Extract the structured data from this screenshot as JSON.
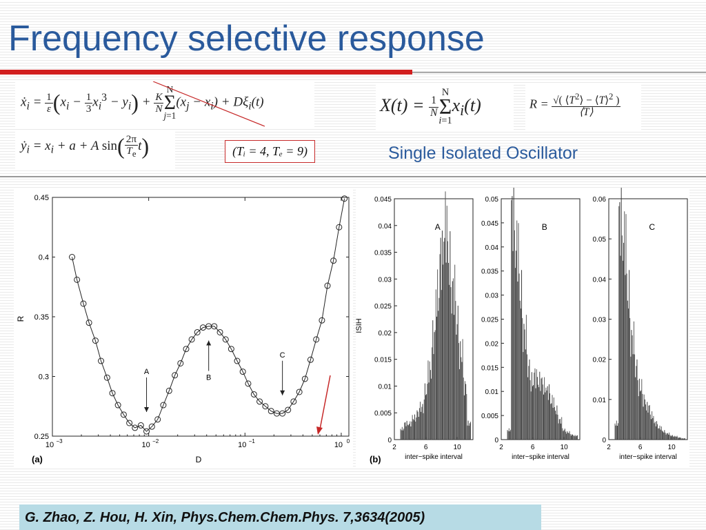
{
  "title": "Frequency selective response",
  "equations": {
    "x_dot": "ẋᵢ = 1/ε ( xᵢ − 1/3 xᵢ³ − yᵢ ) + K/N Σⱼ₌₁ᴺ (xⱼ − xᵢ) + Dξᵢ(t)",
    "y_dot": "ẏᵢ = xᵢ + a + A sin(2π/Tₑ t)",
    "X_def": "X(t) = 1/N Σᵢ₌₁ᴺ xᵢ(t)",
    "R_def": "R = √(⟨T²⟩ − ⟨T⟩²) / ⟨T⟩",
    "params": "(Tᵢ = 4, Tₑ = 9)"
  },
  "single_label": "Single Isolated Oscillator",
  "panel_a": {
    "label": "(a)",
    "xlabel": "D",
    "ylabel": "R",
    "x_ticks": [
      "10",
      "10",
      "10",
      "10"
    ],
    "x_tick_exps": [
      "−3",
      "−2",
      "−1",
      "0"
    ],
    "y_ticks": [
      "0.25",
      "0.3",
      "0.35",
      "0.4",
      "0.45"
    ],
    "annotations": [
      "A",
      "B",
      "C"
    ]
  },
  "panel_b": {
    "label": "(b)",
    "ylabel": "ISIH",
    "xlabel": "inter−spike interval",
    "hist_letters": [
      "A",
      "B",
      "C"
    ],
    "x_ticks": [
      "2",
      "6",
      "10"
    ],
    "hist_y_ticks": [
      [
        "0",
        "0.005",
        "0.01",
        "0.015",
        "0.02",
        "0.025",
        "0.03",
        "0.035",
        "0.04",
        "0.045"
      ],
      [
        "0",
        "0.005",
        "0.01",
        "0.015",
        "0.02",
        "0.025",
        "0.03",
        "0.035",
        "0.04",
        "0.045",
        "0.05"
      ],
      [
        "0",
        "0.01",
        "0.02",
        "0.03",
        "0.04",
        "0.05",
        "0.06"
      ]
    ]
  },
  "citation": "G. Zhao, Z. Hou, H. Xin, Phys.Chem.Chem.Phys. 7,3634(2005)",
  "colors": {
    "title": "#2a5a9c",
    "accent_bar": "#d21f1f",
    "citation_bg": "#b7dbe5",
    "arrow_red": "#c62828"
  },
  "chart_data": [
    {
      "type": "line",
      "xscale": "log",
      "xlabel": "D",
      "ylabel": "R",
      "xlim": [
        0.001,
        1.2
      ],
      "ylim": [
        0.25,
        0.45
      ],
      "series": [
        {
          "marker": "circle",
          "x": [
            0.0016,
            0.0018,
            0.0021,
            0.0024,
            0.0028,
            0.0032,
            0.0037,
            0.0042,
            0.0048,
            0.0055,
            0.0063,
            0.0072,
            0.0083,
            0.0095,
            0.0108,
            0.0124,
            0.0142,
            0.0163,
            0.0187,
            0.0214,
            0.0245,
            0.028,
            0.032,
            0.0367,
            0.042,
            0.048,
            0.055,
            0.063,
            0.072,
            0.083,
            0.095,
            0.108,
            0.124,
            0.142,
            0.163,
            0.187,
            0.214,
            0.245,
            0.28,
            0.32,
            0.367,
            0.42,
            0.48,
            0.55,
            0.63,
            0.72,
            0.83,
            0.95,
            1.08
          ],
          "y": [
            0.4,
            0.381,
            0.361,
            0.345,
            0.33,
            0.313,
            0.299,
            0.286,
            0.276,
            0.268,
            0.261,
            0.257,
            0.259,
            0.254,
            0.258,
            0.264,
            0.276,
            0.288,
            0.301,
            0.311,
            0.323,
            0.331,
            0.337,
            0.341,
            0.342,
            0.342,
            0.337,
            0.331,
            0.323,
            0.313,
            0.304,
            0.294,
            0.285,
            0.279,
            0.275,
            0.271,
            0.269,
            0.269,
            0.272,
            0.279,
            0.287,
            0.298,
            0.314,
            0.331,
            0.347,
            0.376,
            0.397,
            0.425,
            0.449
          ]
        }
      ],
      "annotations": [
        {
          "text": "A",
          "x": 0.0095,
          "y": 0.261,
          "direction": "down"
        },
        {
          "text": "B",
          "x": 0.042,
          "y": 0.337,
          "direction": "up"
        },
        {
          "text": "C",
          "x": 0.245,
          "y": 0.275,
          "direction": "down"
        }
      ]
    },
    {
      "type": "bar",
      "letter": "A",
      "xlabel": "inter−spike interval",
      "ylabel": "ISIH",
      "xlim": [
        2,
        12
      ],
      "ylim": [
        0,
        0.045
      ],
      "x": [
        3,
        3.5,
        4,
        4.5,
        5,
        5.5,
        6,
        6.5,
        7,
        7.5,
        8,
        8.5,
        9,
        9.5,
        10,
        10.5,
        11,
        11.5
      ],
      "values": [
        0.002,
        0.003,
        0.003,
        0.004,
        0.005,
        0.006,
        0.009,
        0.013,
        0.019,
        0.027,
        0.034,
        0.04,
        0.033,
        0.028,
        0.022,
        0.016,
        0.01,
        0.003
      ]
    },
    {
      "type": "bar",
      "letter": "B",
      "xlabel": "inter−spike interval",
      "xlim": [
        2,
        12
      ],
      "ylim": [
        0,
        0.05
      ],
      "x": [
        3,
        3.5,
        4,
        4.5,
        5,
        5.5,
        6,
        6.5,
        7,
        7.5,
        8,
        8.5,
        9,
        9.5,
        10,
        10.5,
        11,
        11.5
      ],
      "values": [
        0.002,
        0.047,
        0.04,
        0.03,
        0.022,
        0.015,
        0.012,
        0.013,
        0.012,
        0.011,
        0.01,
        0.008,
        0.006,
        0.004,
        0.002,
        0.0015,
        0.001,
        0.0008
      ]
    },
    {
      "type": "bar",
      "letter": "C",
      "xlabel": "inter−spike interval",
      "xlim": [
        2,
        12
      ],
      "ylim": [
        0,
        0.06
      ],
      "x": [
        3,
        3.5,
        4,
        4.5,
        5,
        5.5,
        6,
        6.5,
        7,
        7.5,
        8,
        8.5,
        9,
        9.5,
        10,
        10.5,
        11,
        11.5
      ],
      "values": [
        0.004,
        0.055,
        0.05,
        0.036,
        0.025,
        0.018,
        0.013,
        0.01,
        0.008,
        0.006,
        0.004,
        0.003,
        0.002,
        0.0015,
        0.001,
        0.0008,
        0.0005,
        0.0003
      ]
    }
  ]
}
